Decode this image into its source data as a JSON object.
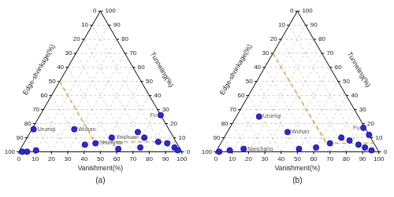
{
  "chart_data": [
    {
      "type": "ternary",
      "label": "(a)",
      "axes": {
        "bottom": "Vanishment(%)",
        "right": "Tunneling(%)",
        "left": "Edge-shrinkage(%)"
      },
      "ticks": [
        0,
        10,
        20,
        30,
        40,
        50,
        60,
        70,
        80,
        90,
        100
      ],
      "grid": true,
      "series": [
        {
          "type": "scatter",
          "color": "#2a2ad8",
          "marker": "circle",
          "points": [
            {
              "label": "Urumqi",
              "vanishment": 1,
              "tunneling": 16,
              "edge_shrinkage": 83
            },
            {
              "label": "Wuhan",
              "vanishment": 26,
              "tunneling": 16,
              "edge_shrinkage": 58
            },
            {
              "label": "Fu",
              "vanishment": 74,
              "tunneling": 26,
              "edge_shrinkage": 0
            },
            {
              "label": "Yinchuan",
              "vanishment": 52,
              "tunneling": 10,
              "edge_shrinkage": 38
            },
            {
              "label": "Shanghai",
              "vanishment": 44,
              "tunneling": 6,
              "edge_shrinkage": 50
            },
            {
              "label": null,
              "vanishment": 2,
              "tunneling": 0,
              "edge_shrinkage": 98
            },
            {
              "label": null,
              "vanishment": 5,
              "tunneling": 0,
              "edge_shrinkage": 95
            },
            {
              "label": null,
              "vanishment": 10,
              "tunneling": 1,
              "edge_shrinkage": 89
            },
            {
              "label": null,
              "vanishment": 38,
              "tunneling": 5,
              "edge_shrinkage": 57
            },
            {
              "label": null,
              "vanishment": 60,
              "tunneling": 2,
              "edge_shrinkage": 38
            },
            {
              "label": null,
              "vanishment": 66,
              "tunneling": 14,
              "edge_shrinkage": 20
            },
            {
              "label": null,
              "vanishment": 72,
              "tunneling": 10,
              "edge_shrinkage": 18
            },
            {
              "label": null,
              "vanishment": 73,
              "tunneling": 3,
              "edge_shrinkage": 24
            },
            {
              "label": null,
              "vanishment": 82,
              "tunneling": 7,
              "edge_shrinkage": 11
            },
            {
              "label": null,
              "vanishment": 88,
              "tunneling": 6,
              "edge_shrinkage": 6
            },
            {
              "label": null,
              "vanishment": 94,
              "tunneling": 3,
              "edge_shrinkage": 3
            },
            {
              "label": null,
              "vanishment": 97,
              "tunneling": 1,
              "edge_shrinkage": 2
            }
          ]
        },
        {
          "type": "line",
          "color": "#f0a030",
          "line_style": "dashed",
          "points": [
            {
              "vanishment": 0,
              "tunneling": 50,
              "edge_shrinkage": 50
            },
            {
              "vanishment": 43,
              "tunneling": 7,
              "edge_shrinkage": 50
            },
            {
              "vanishment": 93,
              "tunneling": 7,
              "edge_shrinkage": 0
            }
          ]
        }
      ]
    },
    {
      "type": "ternary",
      "label": "(b)",
      "axes": {
        "bottom": "Vanishment(%)",
        "right": "Tunneling(%)",
        "left": "Edge-shrinkage(%)"
      },
      "ticks": [
        0,
        10,
        20,
        30,
        40,
        50,
        60,
        70,
        80,
        90,
        100
      ],
      "grid": true,
      "series": [
        {
          "type": "scatter",
          "color": "#2a2ad8",
          "marker": "circle",
          "points": [
            {
              "label": "Urumqi",
              "vanishment": 14,
              "tunneling": 25,
              "edge_shrinkage": 61
            },
            {
              "label": "Wuhan",
              "vanishment": 37,
              "tunneling": 14,
              "edge_shrinkage": 49
            },
            {
              "label": "Nanchang",
              "vanishment": 16,
              "tunneling": 2,
              "edge_shrinkage": 82
            },
            {
              "label": "Fu",
              "vanishment": 82,
              "tunneling": 17,
              "edge_shrinkage": 1
            },
            {
              "label": null,
              "vanishment": 2,
              "tunneling": 0,
              "edge_shrinkage": 98
            },
            {
              "label": null,
              "vanishment": 8,
              "tunneling": 1,
              "edge_shrinkage": 91
            },
            {
              "label": null,
              "vanishment": 50,
              "tunneling": 2,
              "edge_shrinkage": 48
            },
            {
              "label": null,
              "vanishment": 60,
              "tunneling": 3,
              "edge_shrinkage": 37
            },
            {
              "label": null,
              "vanishment": 67,
              "tunneling": 6,
              "edge_shrinkage": 27
            },
            {
              "label": null,
              "vanishment": 72,
              "tunneling": 10,
              "edge_shrinkage": 18
            },
            {
              "label": null,
              "vanishment": 78,
              "tunneling": 8,
              "edge_shrinkage": 14
            },
            {
              "label": null,
              "vanishment": 85,
              "tunneling": 5,
              "edge_shrinkage": 10
            },
            {
              "label": null,
              "vanishment": 90,
              "tunneling": 3,
              "edge_shrinkage": 7
            },
            {
              "label": null,
              "vanishment": 95,
              "tunneling": 1,
              "edge_shrinkage": 4
            },
            {
              "label": null,
              "vanishment": 88,
              "tunneling": 12,
              "edge_shrinkage": 0
            }
          ]
        },
        {
          "type": "line",
          "color": "#f0a030",
          "line_style": "dashed",
          "points": [
            {
              "vanishment": 0,
              "tunneling": 70,
              "edge_shrinkage": 30
            },
            {
              "vanishment": 65,
              "tunneling": 6,
              "edge_shrinkage": 29
            },
            {
              "vanishment": 94,
              "tunneling": 6,
              "edge_shrinkage": 0
            }
          ]
        }
      ]
    }
  ]
}
